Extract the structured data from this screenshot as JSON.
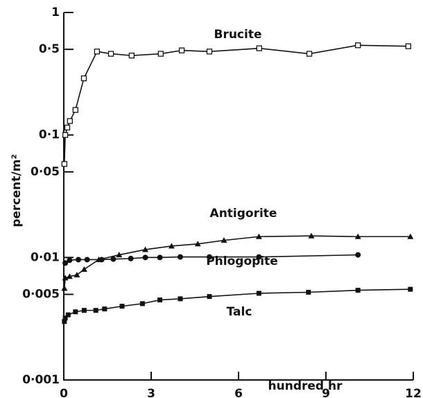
{
  "chart_data": {
    "type": "line",
    "log_y": true,
    "xlabel": "hundred  hr",
    "ylabel": "percent/m²",
    "xlim": [
      0,
      12
    ],
    "xticks": [
      0,
      3,
      6,
      9,
      12
    ],
    "ylim": [
      0.001,
      1
    ],
    "yticks": [
      {
        "value": 0.001,
        "label": "0·001"
      },
      {
        "value": 0.005,
        "label": "0·005"
      },
      {
        "value": 0.01,
        "label": "0·01"
      },
      {
        "value": 0.05,
        "label": "0·05"
      },
      {
        "value": 0.1,
        "label": "0·1"
      },
      {
        "value": 0.5,
        "label": "0·5"
      },
      1
    ],
    "series": [
      {
        "name": "Brucite",
        "color": "#111111",
        "marker": "square-open",
        "x": [
          0.02,
          0.05,
          0.12,
          0.21,
          0.4,
          0.69,
          1.14,
          1.62,
          2.33,
          3.33,
          4.05,
          5.0,
          6.71,
          8.43,
          10.1,
          11.83
        ],
        "values": [
          0.058,
          0.1,
          0.115,
          0.13,
          0.16,
          0.29,
          0.48,
          0.46,
          0.445,
          0.46,
          0.49,
          0.48,
          0.51,
          0.46,
          0.54,
          0.53
        ]
      },
      {
        "name": "Antigorite",
        "color": "#111111",
        "marker": "triangle",
        "x": [
          0.02,
          0.05,
          0.2,
          0.45,
          0.7,
          1.2,
          1.9,
          2.8,
          3.7,
          4.6,
          5.5,
          6.7,
          8.5,
          10.1,
          11.9
        ],
        "values": [
          0.0056,
          0.0068,
          0.007,
          0.0072,
          0.008,
          0.0096,
          0.0105,
          0.0116,
          0.0124,
          0.0129,
          0.0138,
          0.0148,
          0.015,
          0.0148,
          0.0148
        ]
      },
      {
        "name": "Phlogopite",
        "color": "#111111",
        "marker": "circle",
        "x": [
          0.05,
          0.2,
          0.5,
          0.8,
          1.3,
          1.7,
          2.3,
          2.8,
          3.3,
          4.0,
          5.0,
          6.7,
          10.1
        ],
        "values": [
          0.009,
          0.0095,
          0.0096,
          0.0096,
          0.0096,
          0.0097,
          0.0098,
          0.01,
          0.01,
          0.0101,
          0.0101,
          0.0101,
          0.0105
        ]
      },
      {
        "name": "Talc",
        "color": "#111111",
        "marker": "square",
        "x": [
          0.02,
          0.05,
          0.15,
          0.4,
          0.7,
          1.1,
          1.4,
          2.0,
          2.7,
          3.3,
          4.0,
          5.0,
          6.7,
          8.4,
          10.1,
          11.9
        ],
        "values": [
          0.003,
          0.0032,
          0.0034,
          0.0036,
          0.0037,
          0.0037,
          0.0038,
          0.004,
          0.0042,
          0.0045,
          0.0046,
          0.0048,
          0.0051,
          0.0052,
          0.0054,
          0.0055
        ]
      }
    ]
  }
}
